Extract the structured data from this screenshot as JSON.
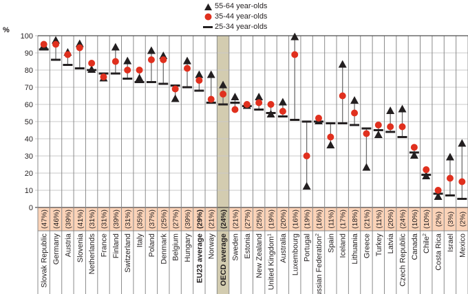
{
  "chart_data": {
    "type": "scatter",
    "title": "",
    "ylabel": "%",
    "xlabel": "",
    "ylim": [
      0,
      100
    ],
    "yticks": [
      0,
      10,
      20,
      30,
      40,
      50,
      60,
      70,
      80,
      90,
      100
    ],
    "grid": true,
    "legend_position": "top-center",
    "highlight_category": "OECD average",
    "colors": {
      "age_55_64": "#231f20",
      "age_35_44": "#e0301e",
      "age_25_34": "#231f20",
      "label_band": "#fbd3b8",
      "highlight": "#d3ccb0",
      "grid": "#c8c8c8"
    },
    "series": [
      {
        "name": "55-64 year-olds",
        "marker": "triangle"
      },
      {
        "name": "35-44 year-olds",
        "marker": "circle"
      },
      {
        "name": "25-34 year-olds",
        "marker": "dash"
      }
    ],
    "categories": [
      {
        "label": "Slovak Republic",
        "sup": "",
        "pct": "(47%)",
        "bold": false,
        "v55": 94,
        "v35": 95,
        "v25": 92
      },
      {
        "label": "Germany",
        "sup": "",
        "pct": "(46%)",
        "bold": false,
        "v55": 97,
        "v35": 95,
        "v25": 86
      },
      {
        "label": "Austria",
        "sup": "",
        "pct": "(39%)",
        "bold": false,
        "v55": 90,
        "v35": 89,
        "v25": 83
      },
      {
        "label": "Slovenia",
        "sup": "",
        "pct": "(41%)",
        "bold": false,
        "v55": 95,
        "v35": 93,
        "v25": 81
      },
      {
        "label": "Netherlands",
        "sup": "",
        "pct": "(31%)",
        "bold": false,
        "v55": 80,
        "v35": 84,
        "v25": 80
      },
      {
        "label": "France",
        "sup": "",
        "pct": "(31%)",
        "bold": false,
        "v55": 75,
        "v35": 76,
        "v25": 78
      },
      {
        "label": "Finland",
        "sup": "",
        "pct": "(39%)",
        "bold": false,
        "v55": 93,
        "v35": 85,
        "v25": 78
      },
      {
        "label": "Switzerland",
        "sup": "",
        "pct": "(31%)",
        "bold": false,
        "v55": 85,
        "v35": 80,
        "v25": 75
      },
      {
        "label": "Italy",
        "sup": "",
        "pct": "(35%)",
        "bold": false,
        "v55": 75,
        "v35": 80,
        "v25": 73
      },
      {
        "label": "Poland",
        "sup": "",
        "pct": "(37%)",
        "bold": false,
        "v55": 91,
        "v35": 86,
        "v25": 73
      },
      {
        "label": "Denmark",
        "sup": "",
        "pct": "(25%)",
        "bold": false,
        "v55": 88,
        "v35": 86,
        "v25": 72
      },
      {
        "label": "Belgium",
        "sup": "",
        "pct": "(27%)",
        "bold": false,
        "v55": 63,
        "v35": 69,
        "v25": 71
      },
      {
        "label": "Hungary",
        "sup": "",
        "pct": "(39%)",
        "bold": false,
        "v55": 85,
        "v35": 81,
        "v25": 70
      },
      {
        "label": "EU23 average",
        "sup": "",
        "pct": "(29%)",
        "bold": true,
        "v55": 77,
        "v35": 74,
        "v25": 68
      },
      {
        "label": "Norway",
        "sup": "",
        "pct": "(21%)",
        "bold": false,
        "v55": 77,
        "v35": 63,
        "v25": 61
      },
      {
        "label": "OECD average",
        "sup": "",
        "pct": "(24%)",
        "bold": true,
        "v55": 71,
        "v35": 66,
        "v25": 60
      },
      {
        "label": "Sweden",
        "sup": "",
        "pct": "(21%)",
        "bold": false,
        "v55": 64,
        "v35": 57,
        "v25": 61
      },
      {
        "label": "Estonia",
        "sup": "",
        "pct": "(27%)",
        "bold": false,
        "v55": 59,
        "v35": 60,
        "v25": 59
      },
      {
        "label": "New Zealand",
        "sup": "",
        "pct": "(25%)",
        "bold": false,
        "v55": 64,
        "v35": 61,
        "v25": 57
      },
      {
        "label": "United Kingdom",
        "sup": "1",
        "pct": "(19%)",
        "bold": false,
        "v55": 54,
        "v35": 60,
        "v25": 55
      },
      {
        "label": "Australia",
        "sup": "",
        "pct": "(20%)",
        "bold": false,
        "v55": 61,
        "v35": 56,
        "v25": 53
      },
      {
        "label": "Luxembourg",
        "sup": "",
        "pct": "(16%)",
        "bold": false,
        "v55": 99,
        "v35": 89,
        "v25": 51
      },
      {
        "label": "Portugal",
        "sup": "",
        "pct": "(19%)",
        "bold": false,
        "v55": 12,
        "v35": 30,
        "v25": 50
      },
      {
        "label": "Russian Federation",
        "sup": "2",
        "pct": "(16%)",
        "bold": false,
        "v55": 50,
        "v35": 52,
        "v25": 50
      },
      {
        "label": "Spain",
        "sup": "",
        "pct": "(11%)",
        "bold": false,
        "v55": 36,
        "v35": 41,
        "v25": 49
      },
      {
        "label": "Iceland",
        "sup": "",
        "pct": "(17%)",
        "bold": false,
        "v55": 83,
        "v35": 65,
        "v25": 49
      },
      {
        "label": "Lithuania",
        "sup": "",
        "pct": "(18%)",
        "bold": false,
        "v55": 62,
        "v35": 55,
        "v25": 48
      },
      {
        "label": "Greece",
        "sup": "",
        "pct": "(21%)",
        "bold": false,
        "v55": 23,
        "v35": 43,
        "v25": 46
      },
      {
        "label": "Turkey",
        "sup": "",
        "pct": "(11%)",
        "bold": false,
        "v55": 42,
        "v35": 48,
        "v25": 45
      },
      {
        "label": "Latvia",
        "sup": "",
        "pct": "(20%)",
        "bold": false,
        "v55": 56,
        "v35": 47,
        "v25": 44
      },
      {
        "label": "Czech Republic",
        "sup": "",
        "pct": "(24%)",
        "bold": false,
        "v55": 57,
        "v35": 47,
        "v25": 41
      },
      {
        "label": "Canada",
        "sup": "",
        "pct": "(10%)",
        "bold": false,
        "v55": 30,
        "v35": 35,
        "v25": 32
      },
      {
        "label": "Chile",
        "sup": "2",
        "pct": "(10%)",
        "bold": false,
        "v55": 18,
        "v35": 22,
        "v25": 19
      },
      {
        "label": "Costa Rica",
        "sup": "",
        "pct": "(2%)",
        "bold": false,
        "v55": 6,
        "v35": 10,
        "v25": 8
      },
      {
        "label": "Israel",
        "sup": "",
        "pct": "(3%)",
        "bold": false,
        "v55": 29,
        "v35": 17,
        "v25": 7
      },
      {
        "label": "Mexico",
        "sup": "",
        "pct": "(2%)",
        "bold": false,
        "v55": 37,
        "v35": 15,
        "v25": 5
      }
    ]
  }
}
